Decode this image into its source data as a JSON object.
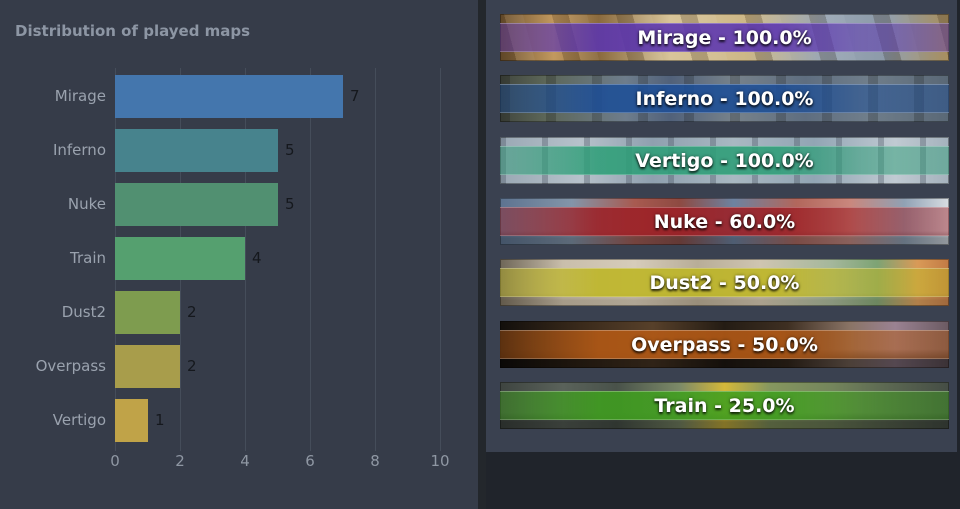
{
  "left_panel": {
    "title": "Distribution of played maps"
  },
  "chart_data": {
    "type": "bar",
    "orientation": "horizontal",
    "title": "Distribution of played maps",
    "categories": [
      "Mirage",
      "Inferno",
      "Nuke",
      "Train",
      "Dust2",
      "Overpass",
      "Vertigo"
    ],
    "values": [
      7,
      5,
      5,
      4,
      2,
      2,
      1
    ],
    "value_labels": [
      "7",
      "5",
      "5",
      "4",
      "2",
      "2",
      "1"
    ],
    "bar_colors": [
      "#4476ad",
      "#47838d",
      "#519071",
      "#55a06f",
      "#7e9c4f",
      "#a89d4b",
      "#c0a348"
    ],
    "xlabel": "",
    "ylabel": "",
    "xlim": [
      0,
      10
    ],
    "x_ticks": [
      0,
      2,
      4,
      6,
      8,
      10
    ],
    "x_tick_labels": [
      "0",
      "2",
      "4",
      "6",
      "8",
      "10"
    ],
    "grid": "vertical gridlines on",
    "legend": "none"
  },
  "map_list": {
    "items": [
      {
        "map": "Mirage",
        "win_rate": "100.0%",
        "label": "Mirage - 100.0%",
        "map_id": "mirage",
        "stripe_color": "#5b35b0"
      },
      {
        "map": "Inferno",
        "win_rate": "100.0%",
        "label": "Inferno - 100.0%",
        "map_id": "inferno",
        "stripe_color": "#1d4e96"
      },
      {
        "map": "Vertigo",
        "win_rate": "100.0%",
        "label": "Vertigo - 100.0%",
        "map_id": "vertigo",
        "stripe_color": "#2e9e78"
      },
      {
        "map": "Nuke",
        "win_rate": "60.0%",
        "label": "Nuke - 60.0%",
        "map_id": "nuke",
        "stripe_color": "#9c2026"
      },
      {
        "map": "Dust2",
        "win_rate": "50.0%",
        "label": "Dust2 - 50.0%",
        "map_id": "dust2",
        "stripe_color": "#bdb523"
      },
      {
        "map": "Overpass",
        "win_rate": "50.0%",
        "label": "Overpass - 50.0%",
        "map_id": "overpass",
        "stripe_color": "#b55a15"
      },
      {
        "map": "Train",
        "win_rate": "25.0%",
        "label": "Train - 25.0%",
        "map_id": "train",
        "stripe_color": "#3f9e1e"
      }
    ]
  },
  "colors": {
    "page_background": "#20242b",
    "left_panel_background": "#363c49",
    "right_panel_background": "#3a4150",
    "gridline": "#454d5a",
    "title_text": "#8d96a4",
    "category_text": "#9aa2ae",
    "axis_text": "#8f97a3",
    "bar_value_text": "#15181d",
    "banner_text": "#ffffff"
  }
}
